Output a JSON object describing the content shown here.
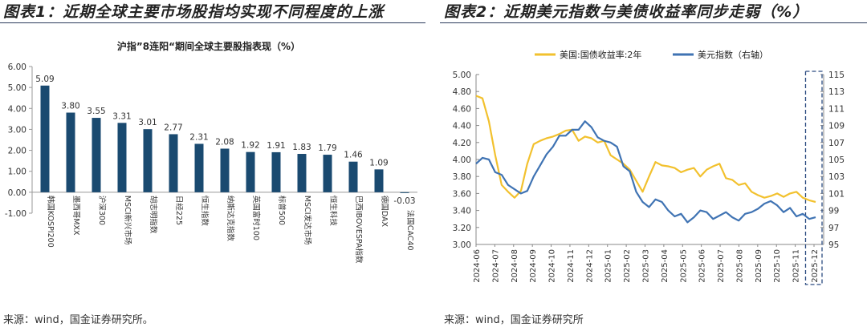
{
  "left": {
    "fig_title": "图表1：近期全球主要市场股指均实现不同程度的上涨",
    "source": "来源：wind，国金证券研究所。",
    "chart_data": {
      "type": "bar",
      "title": "沪指”8连阳“期间全球主要股指表现（%）",
      "categories": [
        "韩国KOSPI200",
        "墨西哥MXX",
        "沪深300",
        "MSCI新兴市场",
        "胡志明指数",
        "日经225",
        "恒生指数",
        "纳斯达克指数",
        "英国富时100",
        "标普500",
        "MSCI发达市场",
        "恒生科技",
        "巴西IBOVESPA指数",
        "德国DAX",
        "法国CAC40"
      ],
      "values": [
        5.09,
        3.8,
        3.55,
        3.31,
        3.01,
        2.77,
        2.31,
        2.08,
        1.92,
        1.91,
        1.83,
        1.79,
        1.46,
        1.09,
        -0.03
      ],
      "value_labels": [
        "5.09",
        "3.80",
        "3.55",
        "3.31",
        "3.01",
        "2.77",
        "2.31",
        "2.08",
        "1.92",
        "1.91",
        "1.83",
        "1.79",
        "1.46",
        "1.09",
        "-0.03"
      ],
      "ylim": [
        -1.0,
        6.0
      ],
      "yticks": [
        "-1.00",
        "0.00",
        "1.00",
        "2.00",
        "3.00",
        "4.00",
        "5.00",
        "6.00"
      ],
      "color": "#1a4a70"
    }
  },
  "right": {
    "fig_title": "图表2：近期美元指数与美债收益率同步走弱（%）",
    "source": "来源：wind，国金证券研究所",
    "chart_data": {
      "type": "line",
      "x_labels": [
        "2024-06",
        "2024-07",
        "2024-08",
        "2024-09",
        "2024-10",
        "2024-11",
        "2024-12",
        "2025-01",
        "2025-02",
        "2025-03",
        "2025-04",
        "2025-05",
        "2025-06",
        "2025-07",
        "2025-08",
        "2025-09",
        "2025-10",
        "2025-11",
        "2025-12"
      ],
      "left_ylim": [
        3.0,
        5.0
      ],
      "left_yticks": [
        "3.00",
        "3.20",
        "3.40",
        "3.60",
        "3.80",
        "4.00",
        "4.20",
        "4.40",
        "4.60",
        "4.80",
        "5.00"
      ],
      "right_ylim": [
        95,
        115
      ],
      "right_yticks": [
        "95",
        "97",
        "99",
        "101",
        "103",
        "105",
        "107",
        "109",
        "111",
        "113",
        "115"
      ],
      "series": [
        {
          "name": "美国:国债收益率:2年",
          "axis": "left",
          "color": "#f2c12e",
          "values": [
            4.75,
            4.72,
            4.45,
            4.05,
            3.7,
            3.62,
            3.55,
            3.63,
            3.95,
            4.18,
            4.22,
            4.25,
            4.27,
            4.3,
            4.34,
            4.35,
            4.22,
            4.27,
            4.25,
            4.2,
            4.22,
            4.05,
            4.0,
            3.95,
            3.88,
            3.75,
            3.62,
            3.8,
            3.97,
            3.93,
            3.92,
            3.9,
            3.85,
            3.88,
            3.9,
            3.8,
            3.88,
            3.92,
            3.95,
            3.78,
            3.76,
            3.7,
            3.72,
            3.62,
            3.58,
            3.55,
            3.57,
            3.6,
            3.56,
            3.6,
            3.62,
            3.55,
            3.52,
            3.5
          ]
        },
        {
          "name": "美元指数（右轴）",
          "axis": "right",
          "color": "#3f73b3",
          "values": [
            104.5,
            105.2,
            105.0,
            103.5,
            103.2,
            102.0,
            101.5,
            101.0,
            101.3,
            103.0,
            104.3,
            105.6,
            106.5,
            107.8,
            107.8,
            108.5,
            108.5,
            109.5,
            108.8,
            107.6,
            107.2,
            107.0,
            106.5,
            104.2,
            103.6,
            101.2,
            100.0,
            99.4,
            100.3,
            100.0,
            99.0,
            98.3,
            98.6,
            97.6,
            98.2,
            99.0,
            98.8,
            98.0,
            98.4,
            98.8,
            98.2,
            97.8,
            98.6,
            98.8,
            99.2,
            99.8,
            100.1,
            99.6,
            98.8,
            99.3,
            98.3,
            98.6,
            98.0,
            98.2
          ]
        }
      ],
      "legend": [
        "美国:国债收益率:2年",
        "美元指数（右轴）"
      ]
    }
  }
}
